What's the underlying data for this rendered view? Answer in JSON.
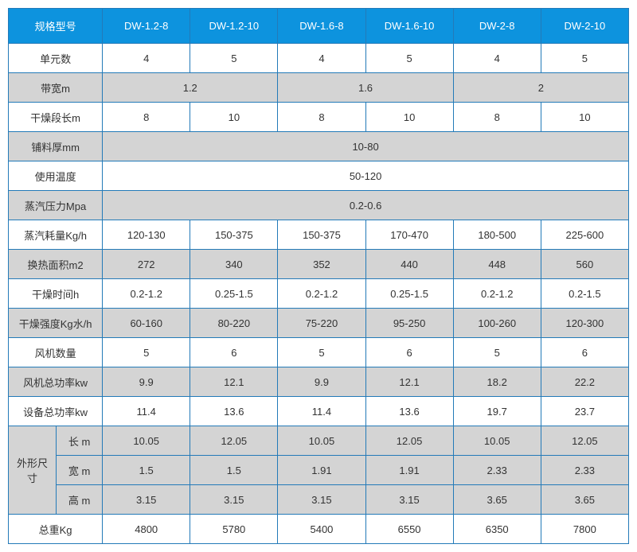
{
  "header": [
    "规格型号",
    "DW-1.2-8",
    "DW-1.2-10",
    "DW-1.6-8",
    "DW-1.6-10",
    "DW-2-8",
    "DW-2-10"
  ],
  "rows": [
    {
      "label": "单元数",
      "cells": [
        {
          "v": "4"
        },
        {
          "v": "5"
        },
        {
          "v": "4"
        },
        {
          "v": "5"
        },
        {
          "v": "4"
        },
        {
          "v": "5"
        }
      ],
      "cls": "white"
    },
    {
      "label": "带宽m",
      "cells": [
        {
          "v": "1.2",
          "span": 2
        },
        {
          "v": "1.6",
          "span": 2
        },
        {
          "v": "2",
          "span": 2
        }
      ],
      "cls": "grey"
    },
    {
      "label": "干燥段长m",
      "cells": [
        {
          "v": "8"
        },
        {
          "v": "10"
        },
        {
          "v": "8"
        },
        {
          "v": "10"
        },
        {
          "v": "8"
        },
        {
          "v": "10"
        }
      ],
      "cls": "white"
    },
    {
      "label": "铺料厚mm",
      "cells": [
        {
          "v": "10-80",
          "span": 6
        }
      ],
      "cls": "grey"
    },
    {
      "label": "使用温度",
      "cells": [
        {
          "v": "50-120",
          "span": 6
        }
      ],
      "cls": "white"
    },
    {
      "label": "蒸汽压力Mpa",
      "cells": [
        {
          "v": "0.2-0.6",
          "span": 6
        }
      ],
      "cls": "grey"
    },
    {
      "label": "蒸汽耗量Kg/h",
      "cells": [
        {
          "v": "120-130"
        },
        {
          "v": "150-375"
        },
        {
          "v": "150-375"
        },
        {
          "v": "170-470"
        },
        {
          "v": "180-500"
        },
        {
          "v": "225-600"
        }
      ],
      "cls": "white"
    },
    {
      "label": "换热面积m2",
      "cells": [
        {
          "v": "272"
        },
        {
          "v": "340"
        },
        {
          "v": "352"
        },
        {
          "v": "440"
        },
        {
          "v": "448"
        },
        {
          "v": "560"
        }
      ],
      "cls": "grey"
    },
    {
      "label": "干燥时间h",
      "cells": [
        {
          "v": "0.2-1.2"
        },
        {
          "v": "0.25-1.5"
        },
        {
          "v": "0.2-1.2"
        },
        {
          "v": "0.25-1.5"
        },
        {
          "v": "0.2-1.2"
        },
        {
          "v": "0.2-1.5"
        }
      ],
      "cls": "white"
    },
    {
      "label": "干燥强度Kg水/h",
      "cells": [
        {
          "v": "60-160"
        },
        {
          "v": "80-220"
        },
        {
          "v": "75-220"
        },
        {
          "v": "95-250"
        },
        {
          "v": "100-260"
        },
        {
          "v": "120-300"
        }
      ],
      "cls": "grey"
    },
    {
      "label": "风机数量",
      "cells": [
        {
          "v": "5"
        },
        {
          "v": "6"
        },
        {
          "v": "5"
        },
        {
          "v": "6"
        },
        {
          "v": "5"
        },
        {
          "v": "6"
        }
      ],
      "cls": "white"
    },
    {
      "label": "风机总功率kw",
      "cells": [
        {
          "v": "9.9"
        },
        {
          "v": "12.1"
        },
        {
          "v": "9.9"
        },
        {
          "v": "12.1"
        },
        {
          "v": "18.2"
        },
        {
          "v": "22.2"
        }
      ],
      "cls": "grey"
    },
    {
      "label": "设备总功率kw",
      "cells": [
        {
          "v": "11.4"
        },
        {
          "v": "13.6"
        },
        {
          "v": "11.4"
        },
        {
          "v": "13.6"
        },
        {
          "v": "19.7"
        },
        {
          "v": "23.7"
        }
      ],
      "cls": "white"
    }
  ],
  "dimGroup": {
    "groupLabel": "外形尺寸",
    "rows": [
      {
        "sub": "长 m",
        "cells": [
          "10.05",
          "12.05",
          "10.05",
          "12.05",
          "10.05",
          "12.05"
        ]
      },
      {
        "sub": "宽 m",
        "cells": [
          "1.5",
          "1.5",
          "1.91",
          "1.91",
          "2.33",
          "2.33"
        ]
      },
      {
        "sub": "高 m",
        "cells": [
          "3.15",
          "3.15",
          "3.15",
          "3.15",
          "3.65",
          "3.65"
        ]
      }
    ],
    "cls": "grey"
  },
  "lastRow": {
    "label": "总重Kg",
    "cells": [
      "4800",
      "5780",
      "5400",
      "6550",
      "6350",
      "7800"
    ],
    "cls": "white"
  }
}
